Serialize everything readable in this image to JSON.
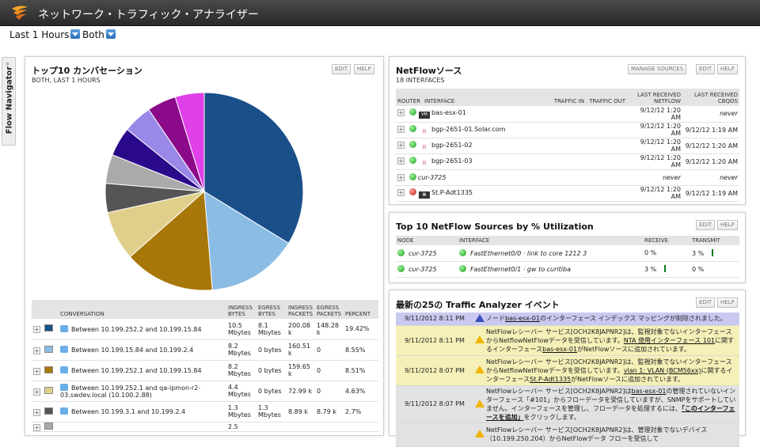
{
  "app": {
    "title": "ネットワーク・トラフィック・アナライザー"
  },
  "filters": {
    "time": "Last 1 Hours",
    "direction": "Both"
  },
  "navigator": {
    "label": "Flow Navigator"
  },
  "conversations": {
    "title": "トップ10 カンバセーション",
    "subtitle": "BOTH, LAST 1 HOURS",
    "edit": "EDIT",
    "help": "HELP",
    "columns": [
      "CONVERSATION",
      "INGRESS BYTES",
      "EGRESS BYTES",
      "INGRESS PACKETS",
      "EGRESS PACKETS",
      "PERCENT"
    ],
    "rows": [
      {
        "color": "#1a4f8a",
        "name": "Between 10.199.252.2 and 10.199.15.84",
        "ingress_bytes": "10.5 Mbytes",
        "egress_bytes": "8.1 Mbytes",
        "ingress_packets": "200.08 k",
        "egress_packets": "148.28 k",
        "percent": "19.42%"
      },
      {
        "color": "#8bbce4",
        "name": "Between 10.199.15.84 and 10.199.2.4",
        "ingress_bytes": "8.2 Mbytes",
        "egress_bytes": "0 bytes",
        "ingress_packets": "160.51 k",
        "egress_packets": "0",
        "percent": "8.55%"
      },
      {
        "color": "#a8770a",
        "name": "Between 10.199.252.1 and 10.199.15.84",
        "ingress_bytes": "8.2 Mbytes",
        "egress_bytes": "0 bytes",
        "ingress_packets": "159.65 k",
        "egress_packets": "0",
        "percent": "8.51%"
      },
      {
        "color": "#e0cf8a",
        "name": "Between 10.199.252.1 and qa-ipmon-r2-03.swdev.local (10.100.2.88)",
        "ingress_bytes": "4.4 Mbytes",
        "egress_bytes": "0 bytes",
        "ingress_packets": "72.99 k",
        "egress_packets": "0",
        "percent": "4.63%"
      },
      {
        "color": "#555555",
        "name": "Between 10.199.3.1 and 10.199.2.4",
        "ingress_bytes": "1.3 Mbytes",
        "egress_bytes": "1.3 Mbytes",
        "ingress_packets": "8.89 k",
        "egress_packets": "8.79 k",
        "percent": "2.7%"
      },
      {
        "color": "#aaaaaa",
        "name": "",
        "ingress_bytes": "2.5",
        "egress_bytes": "",
        "ingress_packets": "",
        "egress_packets": "",
        "percent": ""
      }
    ]
  },
  "chart_data": {
    "type": "pie",
    "slices": [
      {
        "value": 33.5,
        "color": "#1a4f8a"
      },
      {
        "value": 14.8,
        "color": "#8bbce4"
      },
      {
        "value": 14.7,
        "color": "#a8770a"
      },
      {
        "value": 8.0,
        "color": "#e0cf8a"
      },
      {
        "value": 4.7,
        "color": "#555555"
      },
      {
        "value": 4.7,
        "color": "#aaaaaa"
      },
      {
        "value": 4.7,
        "color": "#2a0a8a"
      },
      {
        "value": 4.7,
        "color": "#9a88e8"
      },
      {
        "value": 4.7,
        "color": "#8a0a8a"
      },
      {
        "value": 4.7,
        "color": "#e040e8"
      }
    ]
  },
  "netflow": {
    "title": "NetFlowソース",
    "subtitle": "18 INTERFACES",
    "manage": "MANAGE SOURCES",
    "edit": "EDIT",
    "help": "HELP",
    "columns": {
      "router": "ROUTER",
      "interface": "INTERFACE",
      "traffic_in": "TRAFFIC IN",
      "traffic_out": "TRAFFIC OUT",
      "netflow": "LAST RECEIVED NETFLOW",
      "cbqos": "LAST RECEIVED CBQOS"
    },
    "rows": [
      {
        "icon": "VM",
        "name": "bas-esx-01",
        "italic": false,
        "netflow": "9/12/12 1:20 AM",
        "cbqos": "never",
        "status": "green"
      },
      {
        "icon": "cisco",
        "name": "bgp-2651-01.Solar.com",
        "italic": false,
        "netflow": "9/12/12 1:20 AM",
        "cbqos": "9/12/12 1:19 AM",
        "status": "green"
      },
      {
        "icon": "cisco",
        "name": "bgp-2651-02",
        "italic": false,
        "netflow": "9/12/12 1:20 AM",
        "cbqos": "9/12/12 1:20 AM",
        "status": "green"
      },
      {
        "icon": "cisco",
        "name": "bgp-2651-03",
        "italic": false,
        "netflow": "9/12/12 1:20 AM",
        "cbqos": "9/12/12 1:20 AM",
        "status": "green"
      },
      {
        "icon": "",
        "name": "cur-3725",
        "italic": true,
        "netflow": "never",
        "cbqos": "never",
        "status": "green"
      },
      {
        "icon": "dev",
        "name": "St.P-Adt1335",
        "italic": false,
        "netflow": "9/12/12 1:20 AM",
        "cbqos": "9/12/12 1:19 AM",
        "status": "red"
      }
    ]
  },
  "top10": {
    "title": "Top 10 NetFlow Sources by % Utilization",
    "edit": "EDIT",
    "help": "HELP",
    "columns": {
      "node": "NODE",
      "interface": "INTERFACE",
      "receive": "RECEIVE",
      "transmit": "TRANSMIT"
    },
    "rows": [
      {
        "node": "cur-3725",
        "interface": "FastEthernet0/0 · link to core 1212 3",
        "receive": "0 %",
        "transmit": "3 %",
        "bar_on": "transmit"
      },
      {
        "node": "cur-3725",
        "interface": "FastEthernet0/1 · gw to curitiba",
        "receive": "3 %",
        "transmit": "0 %",
        "bar_on": "receive"
      }
    ]
  },
  "events": {
    "title": "最新の25の Traffic Analyzer イベント",
    "edit": "EDIT",
    "help": "HELP",
    "rows": [
      {
        "time": "9/11/2012 8:11 PM",
        "type": "info",
        "bg": "#c9c9f0",
        "p1": "ノード",
        "link": "bas-esx-01",
        "p2": "のインターフェース インデックス マッピングが削除されました。"
      },
      {
        "time": "9/11/2012 8:11 PM",
        "type": "warn",
        "bg": "#f5f0b8",
        "text": "NetFlowレシーバー サービス[OCH2K8JAPNR2]は、監視対象でないインターフェースからNetflowNetFlowデータを受信しています。",
        "link": "NTA 使用インターフェース 101",
        "tail": "に関するインターフェース",
        "link2": "bas-esx-01",
        "tail2": "がNetFlowソースに追加されています。"
      },
      {
        "time": "9/11/2012 8:07 PM",
        "type": "warn",
        "bg": "#f5f0b8",
        "text": "NetFlowレシーバー サービス[OCH2K8JAPNR2]は、監視対象でないインターフェースからNetflowNetFlowデータを受信しています。",
        "link": "vlan 1: VLAN (BCM56xx)",
        "tail": "に関するインターフェース",
        "link2": "St.P-Adt1335",
        "tail2": "がNetFlowソースに追加されています。"
      },
      {
        "time": "9/11/2012 8:07 PM",
        "type": "warn",
        "bg": "#e2e2e2",
        "text": "NetFlowレシーバー サービス[OCH2K8JAPNR2]は",
        "link": "bas-esx-01",
        "tail": "の管理されていないインターフェース「#101」からフローデータを受信していますが、SNMPをサポートしていません。インターフェースを管理し、フローデータを処理するには、",
        "link2": "「このインターフェースを追加」",
        "tail2": "をクリックします。"
      },
      {
        "time": "",
        "type": "warn",
        "bg": "#e2e2e2",
        "text": "NetFlowレシーバー サービス[OCH2K8JAPNR2]は、管理対象でないデバイス（10.199.250.204）からNetFlowデータ フローを受信して",
        "link": "",
        "tail": "",
        "link2": "",
        "tail2": ""
      }
    ]
  }
}
